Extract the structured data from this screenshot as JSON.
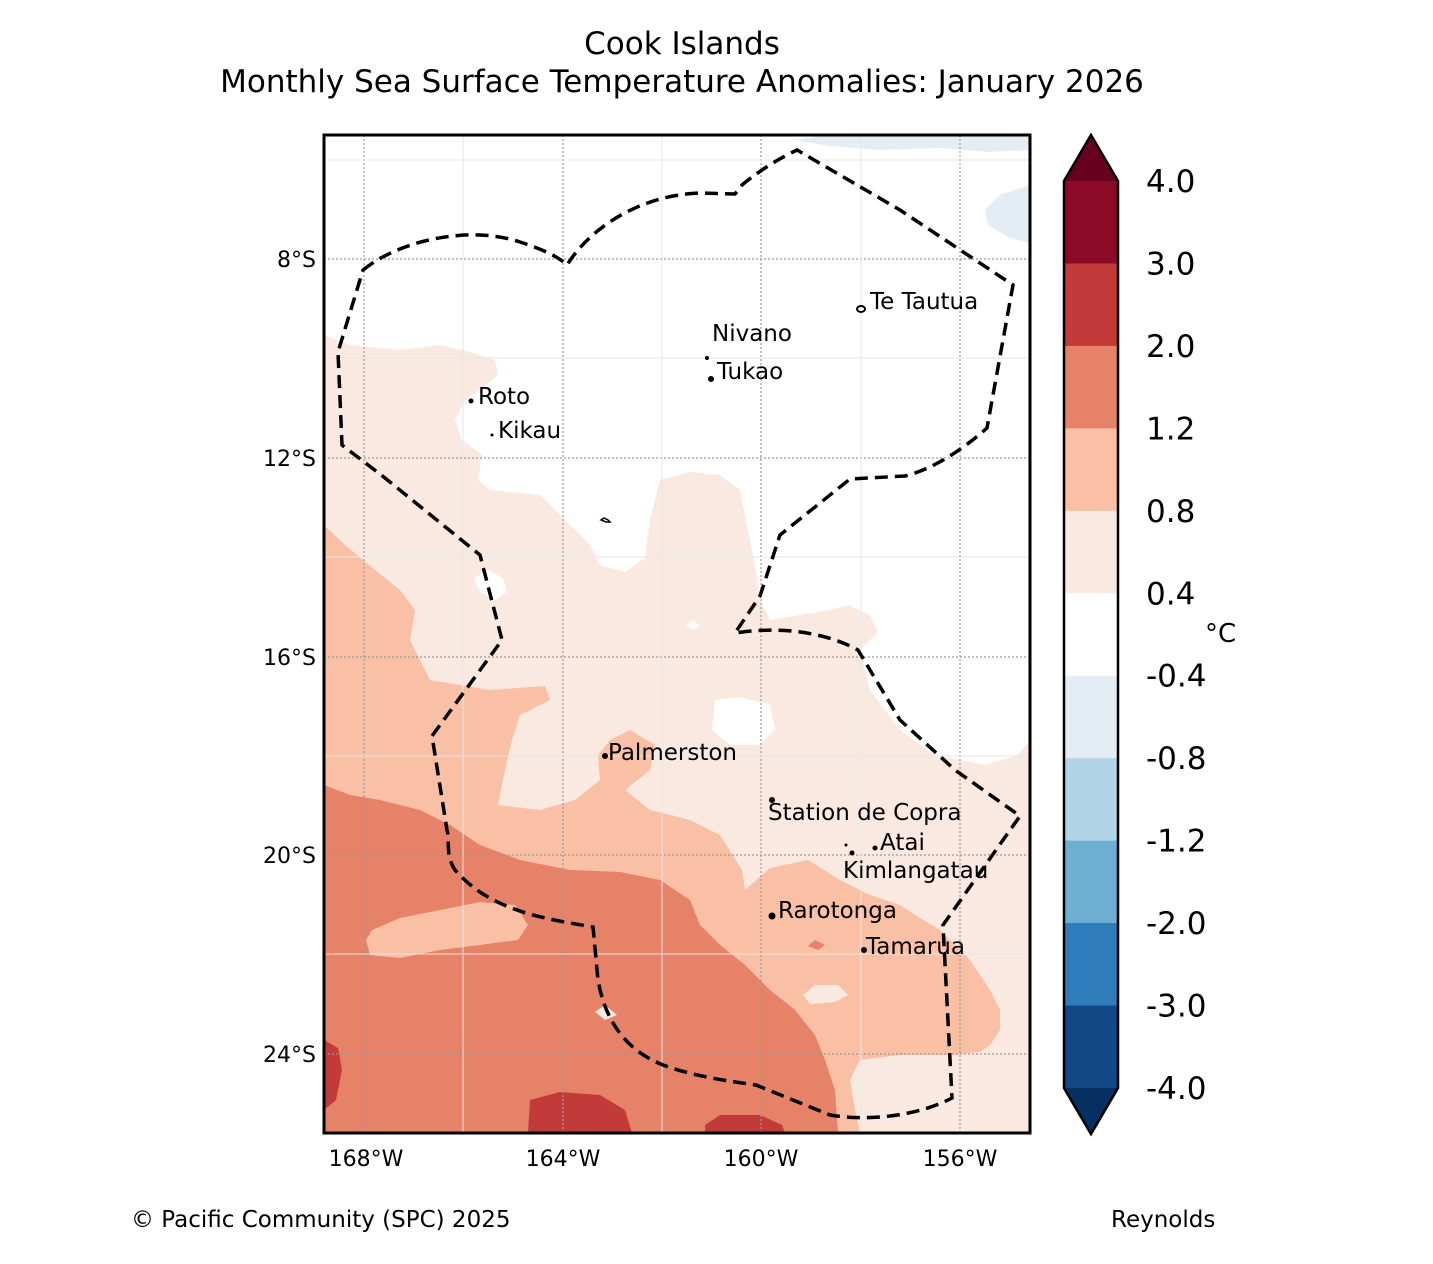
{
  "title": "Cook Islands",
  "subtitle": "Monthly Sea Surface Temperature Anomalies: January 2026",
  "map": {
    "lon_ticks": [
      "168°W",
      "164°W",
      "160°W",
      "156°W"
    ],
    "lat_ticks": [
      "8°S",
      "12°S",
      "16°S",
      "20°S",
      "24°S"
    ],
    "places": [
      {
        "name": "Te Tautua"
      },
      {
        "name": "Nivano"
      },
      {
        "name": "Tukao"
      },
      {
        "name": "Roto"
      },
      {
        "name": "Kikau"
      },
      {
        "name": "Palmerston"
      },
      {
        "name": "Station de Copra"
      },
      {
        "name": "Atai"
      },
      {
        "name": "Kimlangatau"
      },
      {
        "name": "Rarotonga"
      },
      {
        "name": "Tamarua"
      }
    ]
  },
  "colorbar": {
    "unit": "°C",
    "labels": [
      "4.0",
      "3.0",
      "2.0",
      "1.2",
      "0.8",
      "0.4",
      "-0.4",
      "-0.8",
      "-1.2",
      "-2.0",
      "-3.0",
      "-4.0"
    ],
    "colors": [
      "#67001f",
      "#8b0a25",
      "#c33a3a",
      "#e58267",
      "#f9c0a5",
      "#fae9e0",
      "#ffffff",
      "#e5edf4",
      "#b2d4e6",
      "#6daed3",
      "#2f7cba",
      "#124885",
      "#053061"
    ]
  },
  "palette": {
    "anom_0_4_0_8": "#fae9e0",
    "anom_0_8_1_2": "#f9c0a5",
    "anom_1_2_2_0": "#e58267",
    "anom_2_0_3_0": "#c33a3a",
    "anom_neg_0_4_0_8": "#e5edf4"
  },
  "footer": {
    "copyright": "© Pacific Community (SPC) 2025",
    "source": "Reynolds"
  }
}
